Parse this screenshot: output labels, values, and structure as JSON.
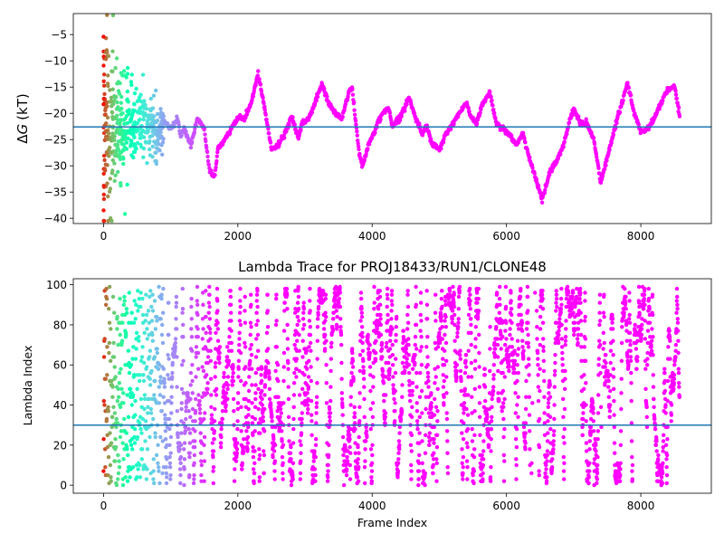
{
  "chart_data": [
    {
      "type": "scatter",
      "title": "",
      "xlabel": "",
      "ylabel": "ΔG (kT)",
      "ylabel_prefix": "Δ",
      "ylabel_var": "G",
      "ylabel_unit": "(kT)",
      "xlim": [
        -450,
        9050
      ],
      "ylim": [
        -41,
        -1
      ],
      "xticks": [
        0,
        2000,
        4000,
        6000,
        8000
      ],
      "xtick_labels": [
        "0",
        "2000",
        "4000",
        "6000",
        "8000"
      ],
      "yticks": [
        -40,
        -35,
        -30,
        -25,
        -20,
        -15,
        -10,
        -5
      ],
      "ytick_labels": [
        "−40",
        "−35",
        "−30",
        "−25",
        "−20",
        "−15",
        "−10",
        "−5"
      ],
      "hline": -22.6,
      "hline_color": "#1f77b4",
      "colormap": "rainbow (color = time; red early → violet late)",
      "x_extent": [
        0,
        8580
      ],
      "series": [
        {
          "trace_keypoints": [
            [
              700,
              -22
            ],
            [
              800,
              -24
            ],
            [
              900,
              -21.5
            ],
            [
              1000,
              -23
            ],
            [
              1100,
              -21
            ],
            [
              1150,
              -24
            ],
            [
              1200,
              -23
            ],
            [
              1300,
              -26
            ],
            [
              1400,
              -21
            ],
            [
              1500,
              -23
            ],
            [
              1580,
              -31
            ],
            [
              1660,
              -32
            ],
            [
              1700,
              -27
            ],
            [
              1800,
              -25
            ],
            [
              1900,
              -23
            ],
            [
              2000,
              -21
            ],
            [
              2100,
              -21
            ],
            [
              2200,
              -18
            ],
            [
              2300,
              -12.5
            ],
            [
              2400,
              -19
            ],
            [
              2500,
              -27
            ],
            [
              2600,
              -26
            ],
            [
              2700,
              -24
            ],
            [
              2800,
              -20.5
            ],
            [
              2900,
              -25
            ],
            [
              2950,
              -22
            ],
            [
              3050,
              -21
            ],
            [
              3150,
              -18
            ],
            [
              3250,
              -14.5
            ],
            [
              3350,
              -18
            ],
            [
              3450,
              -20
            ],
            [
              3550,
              -21
            ],
            [
              3650,
              -16
            ],
            [
              3700,
              -15
            ],
            [
              3800,
              -27
            ],
            [
              3850,
              -30
            ],
            [
              3950,
              -26
            ],
            [
              4050,
              -23
            ],
            [
              4150,
              -20
            ],
            [
              4250,
              -19
            ],
            [
              4300,
              -22.5
            ],
            [
              4400,
              -21
            ],
            [
              4550,
              -17
            ],
            [
              4650,
              -21
            ],
            [
              4750,
              -24
            ],
            [
              4800,
              -22
            ],
            [
              4900,
              -26
            ],
            [
              5000,
              -27
            ],
            [
              5100,
              -24
            ],
            [
              5200,
              -22
            ],
            [
              5300,
              -20
            ],
            [
              5400,
              -18
            ],
            [
              5450,
              -20
            ],
            [
              5550,
              -22
            ],
            [
              5650,
              -18
            ],
            [
              5750,
              -16
            ],
            [
              5850,
              -22
            ],
            [
              5950,
              -23
            ],
            [
              6050,
              -24
            ],
            [
              6150,
              -26
            ],
            [
              6250,
              -24
            ],
            [
              6350,
              -29
            ],
            [
              6450,
              -33
            ],
            [
              6530,
              -36.5
            ],
            [
              6650,
              -31
            ],
            [
              6750,
              -29
            ],
            [
              6850,
              -26
            ],
            [
              6950,
              -21
            ],
            [
              7000,
              -19
            ],
            [
              7100,
              -22
            ],
            [
              7200,
              -22
            ],
            [
              7300,
              -25
            ],
            [
              7400,
              -33
            ],
            [
              7450,
              -31
            ],
            [
              7550,
              -26
            ],
            [
              7650,
              -21
            ],
            [
              7700,
              -19
            ],
            [
              7800,
              -14
            ],
            [
              7900,
              -20
            ],
            [
              8000,
              -23.5
            ],
            [
              8100,
              -23
            ],
            [
              8200,
              -21
            ],
            [
              8300,
              -18
            ],
            [
              8400,
              -15.5
            ],
            [
              8500,
              -15
            ],
            [
              8580,
              -20.5
            ]
          ]
        }
      ]
    },
    {
      "type": "scatter",
      "title": "Lambda Trace for PROJ18433/RUN1/CLONE48",
      "xlabel": "Frame Index",
      "ylabel": "Lambda Index",
      "xlim": [
        -450,
        9050
      ],
      "ylim": [
        -4,
        103
      ],
      "xticks": [
        0,
        2000,
        4000,
        6000,
        8000
      ],
      "xtick_labels": [
        "0",
        "2000",
        "4000",
        "6000",
        "8000"
      ],
      "yticks": [
        0,
        20,
        40,
        60,
        80,
        100
      ],
      "ytick_labels": [
        "0",
        "20",
        "40",
        "60",
        "80",
        "100"
      ],
      "hline": 30,
      "hline_color": "#1f77b4",
      "colormap": "rainbow (color = time; red early → violet late)",
      "x_extent": [
        0,
        8580
      ],
      "y_extent": [
        0,
        99
      ],
      "sparse_bands": [
        [
          6350,
          6450
        ],
        [
          7400,
          7440
        ],
        [
          7880,
          7900
        ]
      ]
    }
  ]
}
